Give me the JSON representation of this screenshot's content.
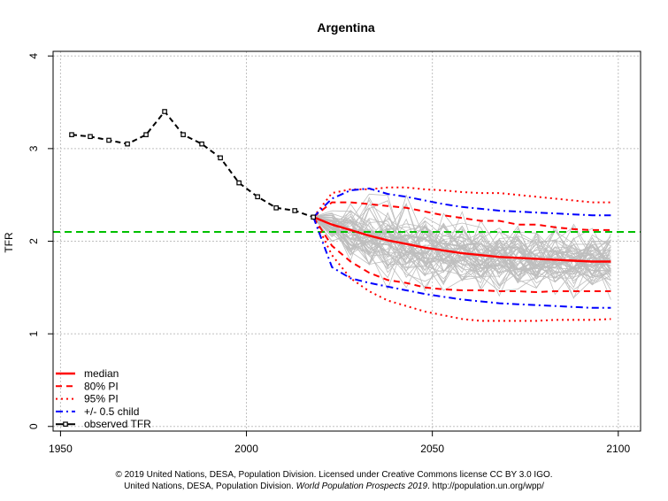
{
  "chart_data": {
    "type": "line",
    "title": "Argentina",
    "ylabel": "TFR",
    "xlabel": "",
    "xlim": [
      1948,
      2106
    ],
    "ylim": [
      -0.05,
      4.05
    ],
    "x_ticks": [
      1950,
      2000,
      2050,
      2100
    ],
    "y_ticks": [
      0,
      1,
      2,
      3,
      4
    ],
    "grid": true,
    "legend_position": "bottom-left",
    "replacement_level": 2.1,
    "colors": {
      "median": "#ff0000",
      "pi80": "#ff0000",
      "pi95": "#ff0000",
      "half_child": "#0000ff",
      "observed": "#000000",
      "replacement": "#00c000",
      "trajectories": "#bebebe",
      "grid": "#c0c0c0"
    },
    "observed": {
      "x": [
        1953,
        1958,
        1963,
        1968,
        1973,
        1978,
        1983,
        1988,
        1993,
        1998,
        2003,
        2008,
        2013,
        2018
      ],
      "y": [
        3.15,
        3.13,
        3.09,
        3.05,
        3.15,
        3.4,
        3.15,
        3.05,
        2.9,
        2.63,
        2.48,
        2.36,
        2.33,
        2.26
      ]
    },
    "projection_x": [
      2018,
      2023,
      2028,
      2033,
      2038,
      2043,
      2048,
      2053,
      2058,
      2063,
      2068,
      2073,
      2078,
      2083,
      2088,
      2093,
      2098
    ],
    "median": [
      2.26,
      2.18,
      2.12,
      2.06,
      2.01,
      1.97,
      1.93,
      1.9,
      1.87,
      1.85,
      1.83,
      1.82,
      1.81,
      1.8,
      1.79,
      1.78,
      1.78
    ],
    "pi80_upper": [
      2.26,
      2.42,
      2.42,
      2.4,
      2.38,
      2.36,
      2.32,
      2.28,
      2.25,
      2.22,
      2.22,
      2.18,
      2.18,
      2.15,
      2.13,
      2.12,
      2.12
    ],
    "pi80_lower": [
      2.26,
      1.95,
      1.78,
      1.66,
      1.58,
      1.55,
      1.5,
      1.48,
      1.47,
      1.47,
      1.46,
      1.46,
      1.45,
      1.46,
      1.46,
      1.46,
      1.46
    ],
    "pi95_upper": [
      2.26,
      2.52,
      2.56,
      2.56,
      2.58,
      2.58,
      2.56,
      2.55,
      2.53,
      2.52,
      2.52,
      2.5,
      2.48,
      2.46,
      2.44,
      2.42,
      2.42
    ],
    "pi95_lower": [
      2.26,
      1.85,
      1.6,
      1.46,
      1.36,
      1.3,
      1.24,
      1.2,
      1.16,
      1.14,
      1.14,
      1.14,
      1.14,
      1.15,
      1.15,
      1.15,
      1.16
    ],
    "half_child_upper": [
      2.26,
      2.46,
      2.55,
      2.57,
      2.51,
      2.48,
      2.44,
      2.4,
      2.37,
      2.35,
      2.33,
      2.32,
      2.31,
      2.3,
      2.29,
      2.28,
      2.28
    ],
    "half_child_lower": [
      2.26,
      1.72,
      1.6,
      1.55,
      1.51,
      1.47,
      1.43,
      1.4,
      1.37,
      1.35,
      1.33,
      1.32,
      1.31,
      1.3,
      1.29,
      1.28,
      1.28
    ],
    "legend": [
      {
        "label": "median",
        "style": "solid",
        "color": "#ff0000"
      },
      {
        "label": "80% PI",
        "style": "dashed",
        "color": "#ff0000"
      },
      {
        "label": "95% PI",
        "style": "dotted",
        "color": "#ff0000"
      },
      {
        "label": "+/- 0.5 child",
        "style": "dashdot",
        "color": "#0000ff"
      },
      {
        "label": "observed TFR",
        "style": "points",
        "color": "#000000"
      }
    ]
  },
  "footer": {
    "line1": "© 2019 United Nations, DESA, Population Division. Licensed under Creative Commons license CC BY 3.0 IGO.",
    "line2_prefix": "United Nations, DESA, Population Division. ",
    "line2_italic": "World Population Prospects 2019",
    "line2_suffix": ". http://population.un.org/wpp/"
  }
}
